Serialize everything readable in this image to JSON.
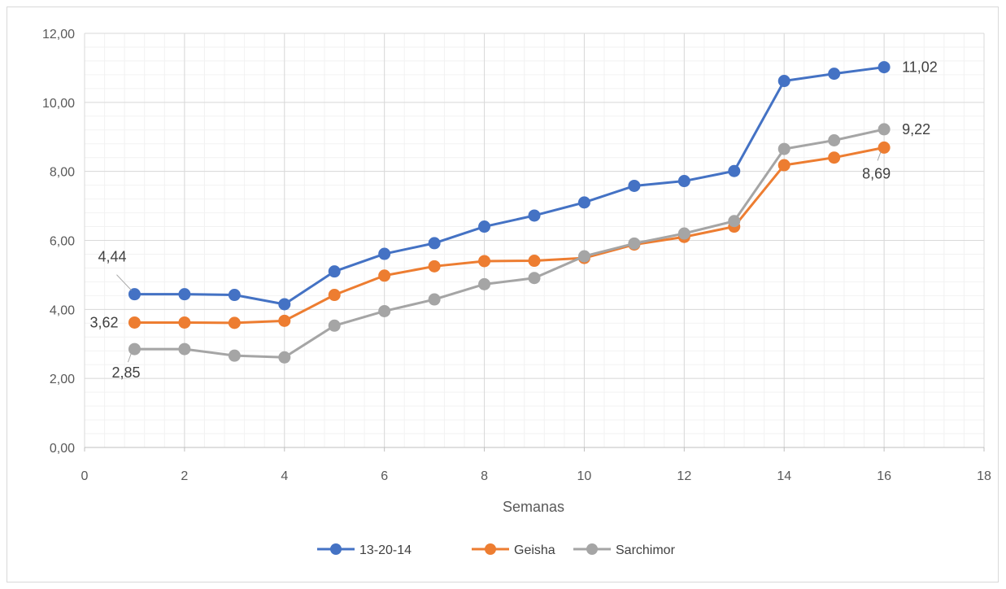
{
  "chart_data": {
    "type": "line",
    "title": "",
    "xlabel": "Semanas",
    "ylabel": "",
    "xlim": [
      0,
      18
    ],
    "ylim": [
      0,
      12
    ],
    "x_ticks": [
      0,
      2,
      4,
      6,
      8,
      10,
      12,
      14,
      16,
      18
    ],
    "y_ticks": [
      "0,00",
      "2,00",
      "4,00",
      "6,00",
      "8,00",
      "10,00",
      "12,00"
    ],
    "y_tick_values": [
      0,
      2,
      4,
      6,
      8,
      10,
      12
    ],
    "grid": "major and minor",
    "legend_position": "bottom",
    "x": [
      1,
      2,
      3,
      4,
      5,
      6,
      7,
      8,
      9,
      10,
      11,
      12,
      13,
      14,
      15,
      16
    ],
    "series": [
      {
        "name": "13-20-14",
        "color": "#4472c4",
        "values": [
          4.44,
          4.44,
          4.42,
          4.15,
          5.1,
          5.61,
          5.92,
          6.4,
          6.72,
          7.1,
          7.58,
          7.72,
          8.01,
          10.62,
          10.83,
          11.02
        ]
      },
      {
        "name": "Geisha",
        "color": "#ed7d31",
        "values": [
          3.62,
          3.62,
          3.61,
          3.67,
          4.42,
          4.98,
          5.25,
          5.4,
          5.41,
          5.49,
          5.88,
          6.1,
          6.4,
          8.18,
          8.4,
          8.69
        ]
      },
      {
        "name": "Sarchimor",
        "color": "#a5a5a5",
        "values": [
          2.85,
          2.85,
          2.66,
          2.61,
          3.53,
          3.95,
          4.29,
          4.73,
          4.91,
          5.54,
          5.91,
          6.2,
          6.56,
          8.65,
          8.9,
          9.22
        ]
      }
    ],
    "data_labels": [
      {
        "series": 0,
        "index": 0,
        "text": "4,44"
      },
      {
        "series": 1,
        "index": 0,
        "text": "3,62"
      },
      {
        "series": 2,
        "index": 0,
        "text": "2,85"
      },
      {
        "series": 0,
        "index": 15,
        "text": "11,02"
      },
      {
        "series": 2,
        "index": 15,
        "text": "9,22"
      },
      {
        "series": 1,
        "index": 15,
        "text": "8,69"
      }
    ]
  }
}
